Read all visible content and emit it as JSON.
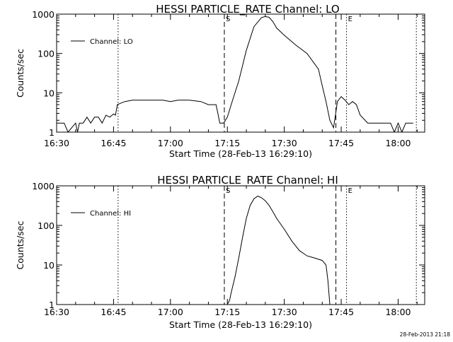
{
  "footer": {
    "timestamp": "28-Feb-2013 21:18"
  },
  "chart_data": [
    {
      "type": "line",
      "title": "HESSI PARTICLE_RATE Channel: LO",
      "xlabel": "Start Time (28-Feb-13 16:29:10)",
      "ylabel": "Counts/sec",
      "yscale": "log",
      "xlim": [
        "16:30",
        "18:07"
      ],
      "ylim": [
        1,
        1000
      ],
      "x_ticks": [
        "16:30",
        "16:45",
        "17:00",
        "17:15",
        "17:30",
        "17:45",
        "18:00"
      ],
      "y_ticks": [
        "1",
        "10",
        "100",
        "1000"
      ],
      "legend": {
        "label": "Channel: LO",
        "position": "upper-left"
      },
      "markers": [
        {
          "time": "17:14.2",
          "label": "S",
          "style": "dashed"
        },
        {
          "time": "17:43.6",
          "label": "",
          "style": "dashed"
        },
        {
          "time": "16:46.2",
          "label": "",
          "style": "dotted"
        },
        {
          "time": "17:46.4",
          "label": "E",
          "style": "dotted"
        },
        {
          "time": "18:04.8",
          "label": "",
          "style": "dotted"
        }
      ],
      "series": [
        {
          "name": "Channel: LO",
          "x": [
            "16:30",
            "16:32",
            "16:33",
            "16:35",
            "16:35.5",
            "16:36",
            "16:37",
            "16:38",
            "16:39",
            "16:40",
            "16:41",
            "16:42",
            "16:43",
            "16:44",
            "16:45",
            "16:45.5",
            "16:46",
            "16:47",
            "16:48",
            "16:50",
            "16:52",
            "16:55",
            "16:58",
            "17:00",
            "17:02",
            "17:05",
            "17:08",
            "17:10",
            "17:12",
            "17:12.5",
            "17:13",
            "17:14",
            "17:15",
            "17:16",
            "17:18",
            "17:20",
            "17:22",
            "17:24",
            "17:25",
            "17:26",
            "17:27",
            "17:28",
            "17:30",
            "17:33",
            "17:36",
            "17:39",
            "17:40",
            "17:41",
            "17:42",
            "17:43",
            "17:44",
            "17:45",
            "17:46",
            "17:47",
            "17:48",
            "17:49",
            "17:50",
            "17:52",
            "17:55",
            "17:57",
            "17:58",
            "17:59",
            "18:00",
            "18:01",
            "18:02",
            "18:03",
            "18:04"
          ],
          "y": [
            1.7,
            1.7,
            1,
            1.7,
            1,
            1.7,
            1.7,
            2.4,
            1.7,
            2.4,
            2.4,
            1.7,
            2.7,
            2.4,
            2.9,
            2.7,
            5,
            5.5,
            6,
            6.5,
            6.5,
            6.5,
            6.5,
            6,
            6.5,
            6.5,
            6,
            5,
            5,
            3,
            1.7,
            1.7,
            2.4,
            5,
            20,
            120,
            480,
            820,
            870,
            830,
            640,
            440,
            290,
            165,
            100,
            40,
            15,
            6,
            2,
            1.3,
            6,
            8,
            6.5,
            5,
            6,
            5,
            2.7,
            1.7,
            1.7,
            1.7,
            1.7,
            1,
            1.7,
            1,
            1.7,
            1.7,
            1.7
          ]
        }
      ]
    },
    {
      "type": "line",
      "title": "HESSI PARTICLE_RATE Channel: HI",
      "xlabel": "Start Time (28-Feb-13 16:29:10)",
      "ylabel": "Counts/sec",
      "yscale": "log",
      "xlim": [
        "16:30",
        "18:07"
      ],
      "ylim": [
        1,
        1000
      ],
      "x_ticks": [
        "16:30",
        "16:45",
        "17:00",
        "17:15",
        "17:30",
        "17:45",
        "18:00"
      ],
      "y_ticks": [
        "1",
        "10",
        "100",
        "1000"
      ],
      "legend": {
        "label": "Channel: HI",
        "position": "upper-left"
      },
      "markers": [
        {
          "time": "17:14.2",
          "label": "S",
          "style": "dashed"
        },
        {
          "time": "17:43.6",
          "label": "",
          "style": "dashed"
        },
        {
          "time": "16:46.2",
          "label": "",
          "style": "dotted"
        },
        {
          "time": "17:46.4",
          "label": "E",
          "style": "dotted"
        },
        {
          "time": "18:04.8",
          "label": "",
          "style": "dotted"
        }
      ],
      "series": [
        {
          "name": "Channel: HI",
          "x": [
            "17:15",
            "17:15.6",
            "17:16",
            "17:17",
            "17:18",
            "17:19",
            "17:20",
            "17:21",
            "17:22",
            "17:23",
            "17:24",
            "17:25",
            "17:26",
            "17:27",
            "17:28",
            "17:30",
            "17:32",
            "17:34",
            "17:36",
            "17:38",
            "17:40",
            "17:41",
            "17:41.5",
            "17:42"
          ],
          "y": [
            1,
            1.3,
            2,
            5,
            15,
            50,
            150,
            320,
            470,
            550,
            500,
            420,
            320,
            220,
            150,
            80,
            40,
            23,
            17,
            15,
            13,
            10,
            4,
            1
          ]
        }
      ]
    }
  ]
}
